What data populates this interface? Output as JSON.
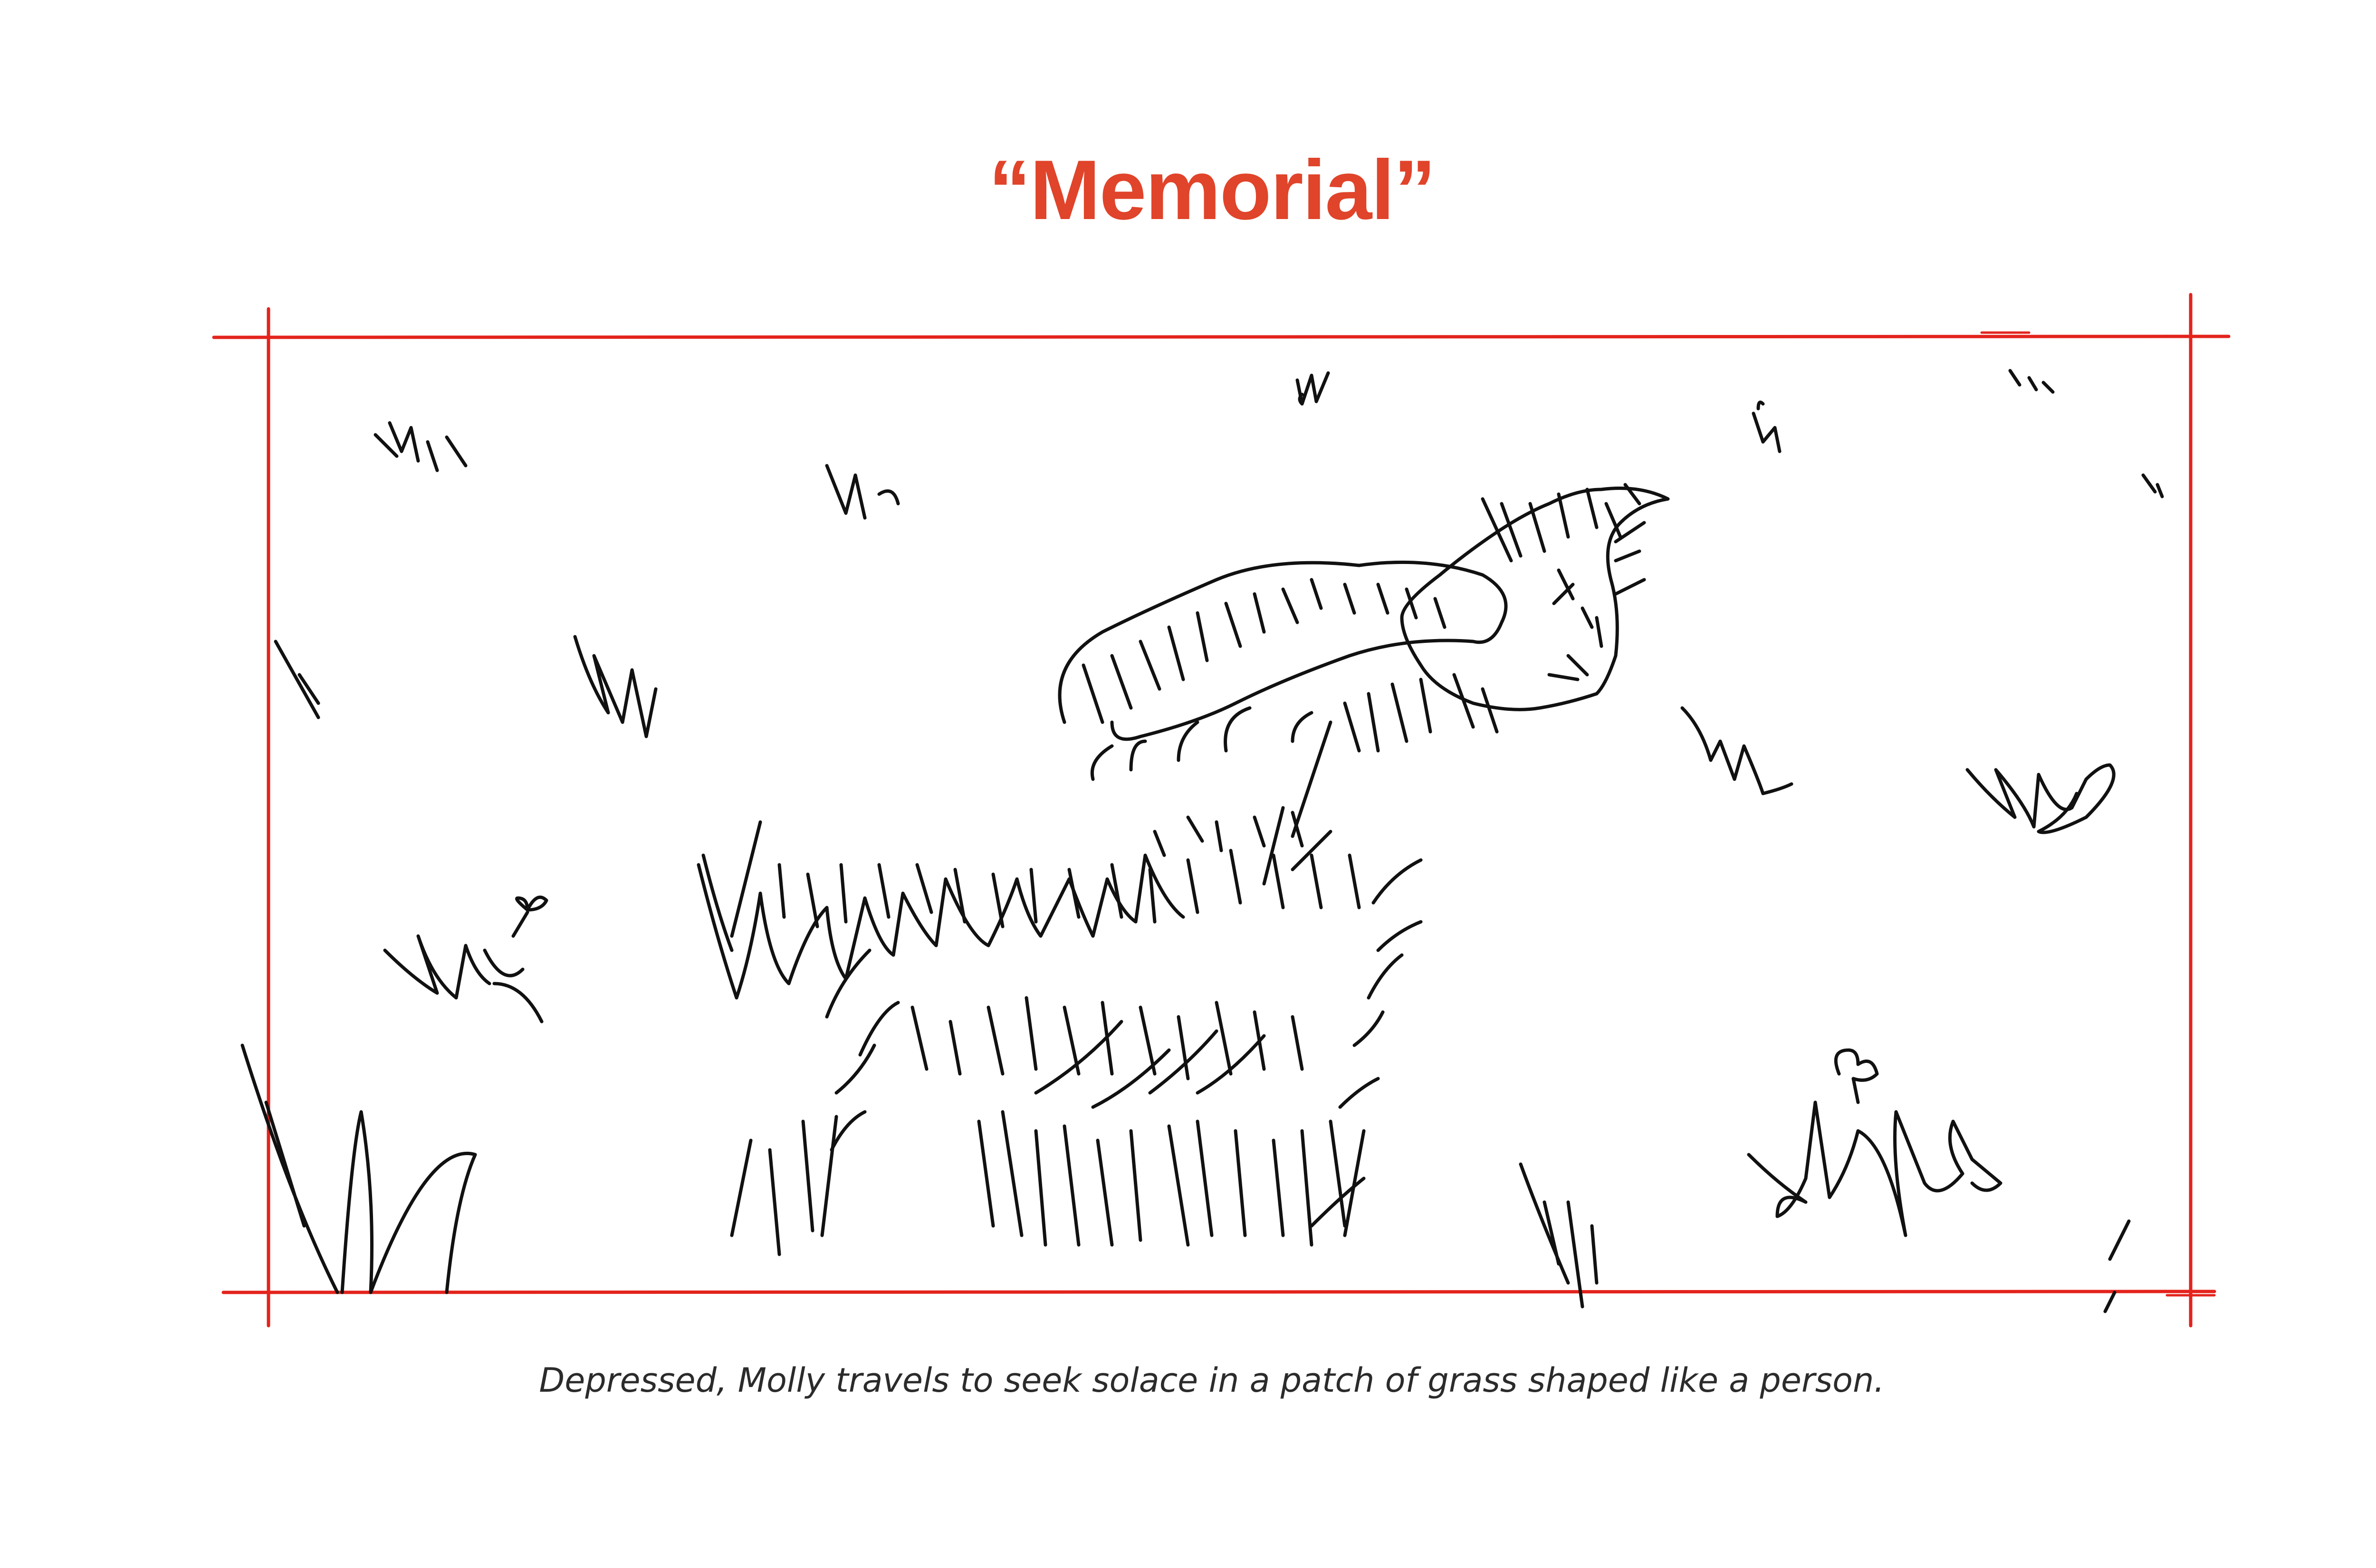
{
  "storyboard": {
    "title": "“Memorial”",
    "caption": "Depressed, Molly travels to seek solace in a patch of grass shaped like a person.",
    "illustration_icon": "grass-figure-sketch-icon"
  },
  "colors": {
    "accent": "#e0442a",
    "frame": "#e3231c",
    "ink": "#111111",
    "caption": "#2b2b2b"
  }
}
